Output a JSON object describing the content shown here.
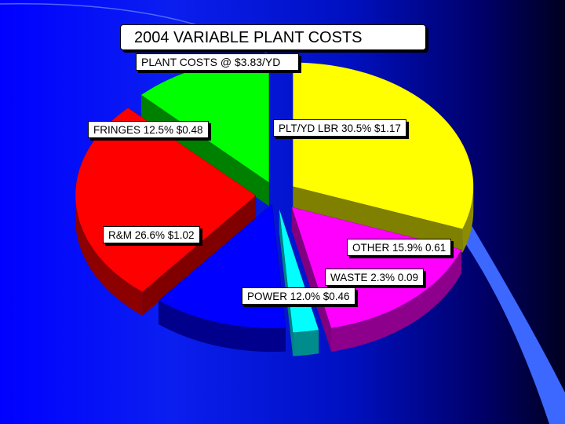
{
  "title": "2004 VARIABLE PLANT COSTS",
  "subtitle": "PLANT COSTS @ $3.83/YD",
  "chart_data": {
    "type": "pie",
    "title": "2004 VARIABLE PLANT COSTS",
    "subtitle": "PLANT COSTS @ $3.83/YD",
    "slices": [
      {
        "name": "PLT/YD LBR",
        "percent": 30.5,
        "value": 1.17,
        "color": "#ffff00",
        "label": "PLT/YD LBR 30.5% $1.17"
      },
      {
        "name": "OTHER",
        "percent": 15.9,
        "value": 0.61,
        "color": "#ff00ff",
        "label": "OTHER 15.9% 0.61"
      },
      {
        "name": "WASTE",
        "percent": 2.3,
        "value": 0.09,
        "color": "#00ffff",
        "label": "WASTE  2.3% 0.09"
      },
      {
        "name": "POWER",
        "percent": 12.0,
        "value": 0.46,
        "color": "#0000ff",
        "label": "POWER 12.0% $0.46"
      },
      {
        "name": "R&M",
        "percent": 26.6,
        "value": 1.02,
        "color": "#ff0000",
        "label": "R&M 26.6% $1.02"
      },
      {
        "name": "FRINGES",
        "percent": 12.5,
        "value": 0.48,
        "color": "#00ff00",
        "label": "FRINGES 12.5% $0.48"
      }
    ],
    "style": "3d-exploded",
    "legend": "none"
  }
}
